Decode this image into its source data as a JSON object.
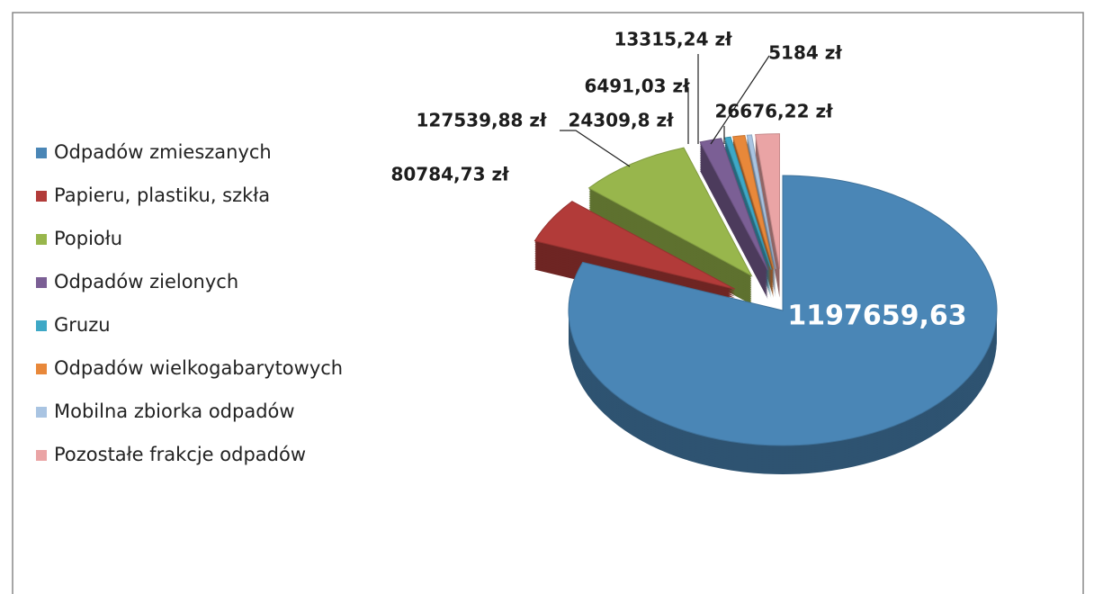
{
  "chart_data": {
    "type": "pie",
    "categories": [
      "Odpadów zmieszanych",
      "Papieru, plastiku, szkła",
      "Popiołu",
      "Odpadów zielonych",
      "Gruzu",
      "Odpadów wielkogabarytowych",
      "Mobilna zbiorka odpadów",
      "Pozostałe frakcje odpadów"
    ],
    "values": [
      1197659.63,
      80784.73,
      127539.88,
      24309.8,
      6491.03,
      13315.24,
      5184,
      26676.22
    ],
    "value_labels": [
      "1197659,63",
      "80784,73 zł",
      "127539,88 zł",
      "24309,8 zł",
      "6491,03 zł",
      "13315,24 zł",
      "5184 zł",
      "26676,22 zł"
    ],
    "colors": [
      "#4a86b6",
      "#b23b39",
      "#98b64c",
      "#7b5f95",
      "#3ea8c6",
      "#e8883a",
      "#a9c4e2",
      "#eaa4a5"
    ],
    "legend": "left"
  }
}
